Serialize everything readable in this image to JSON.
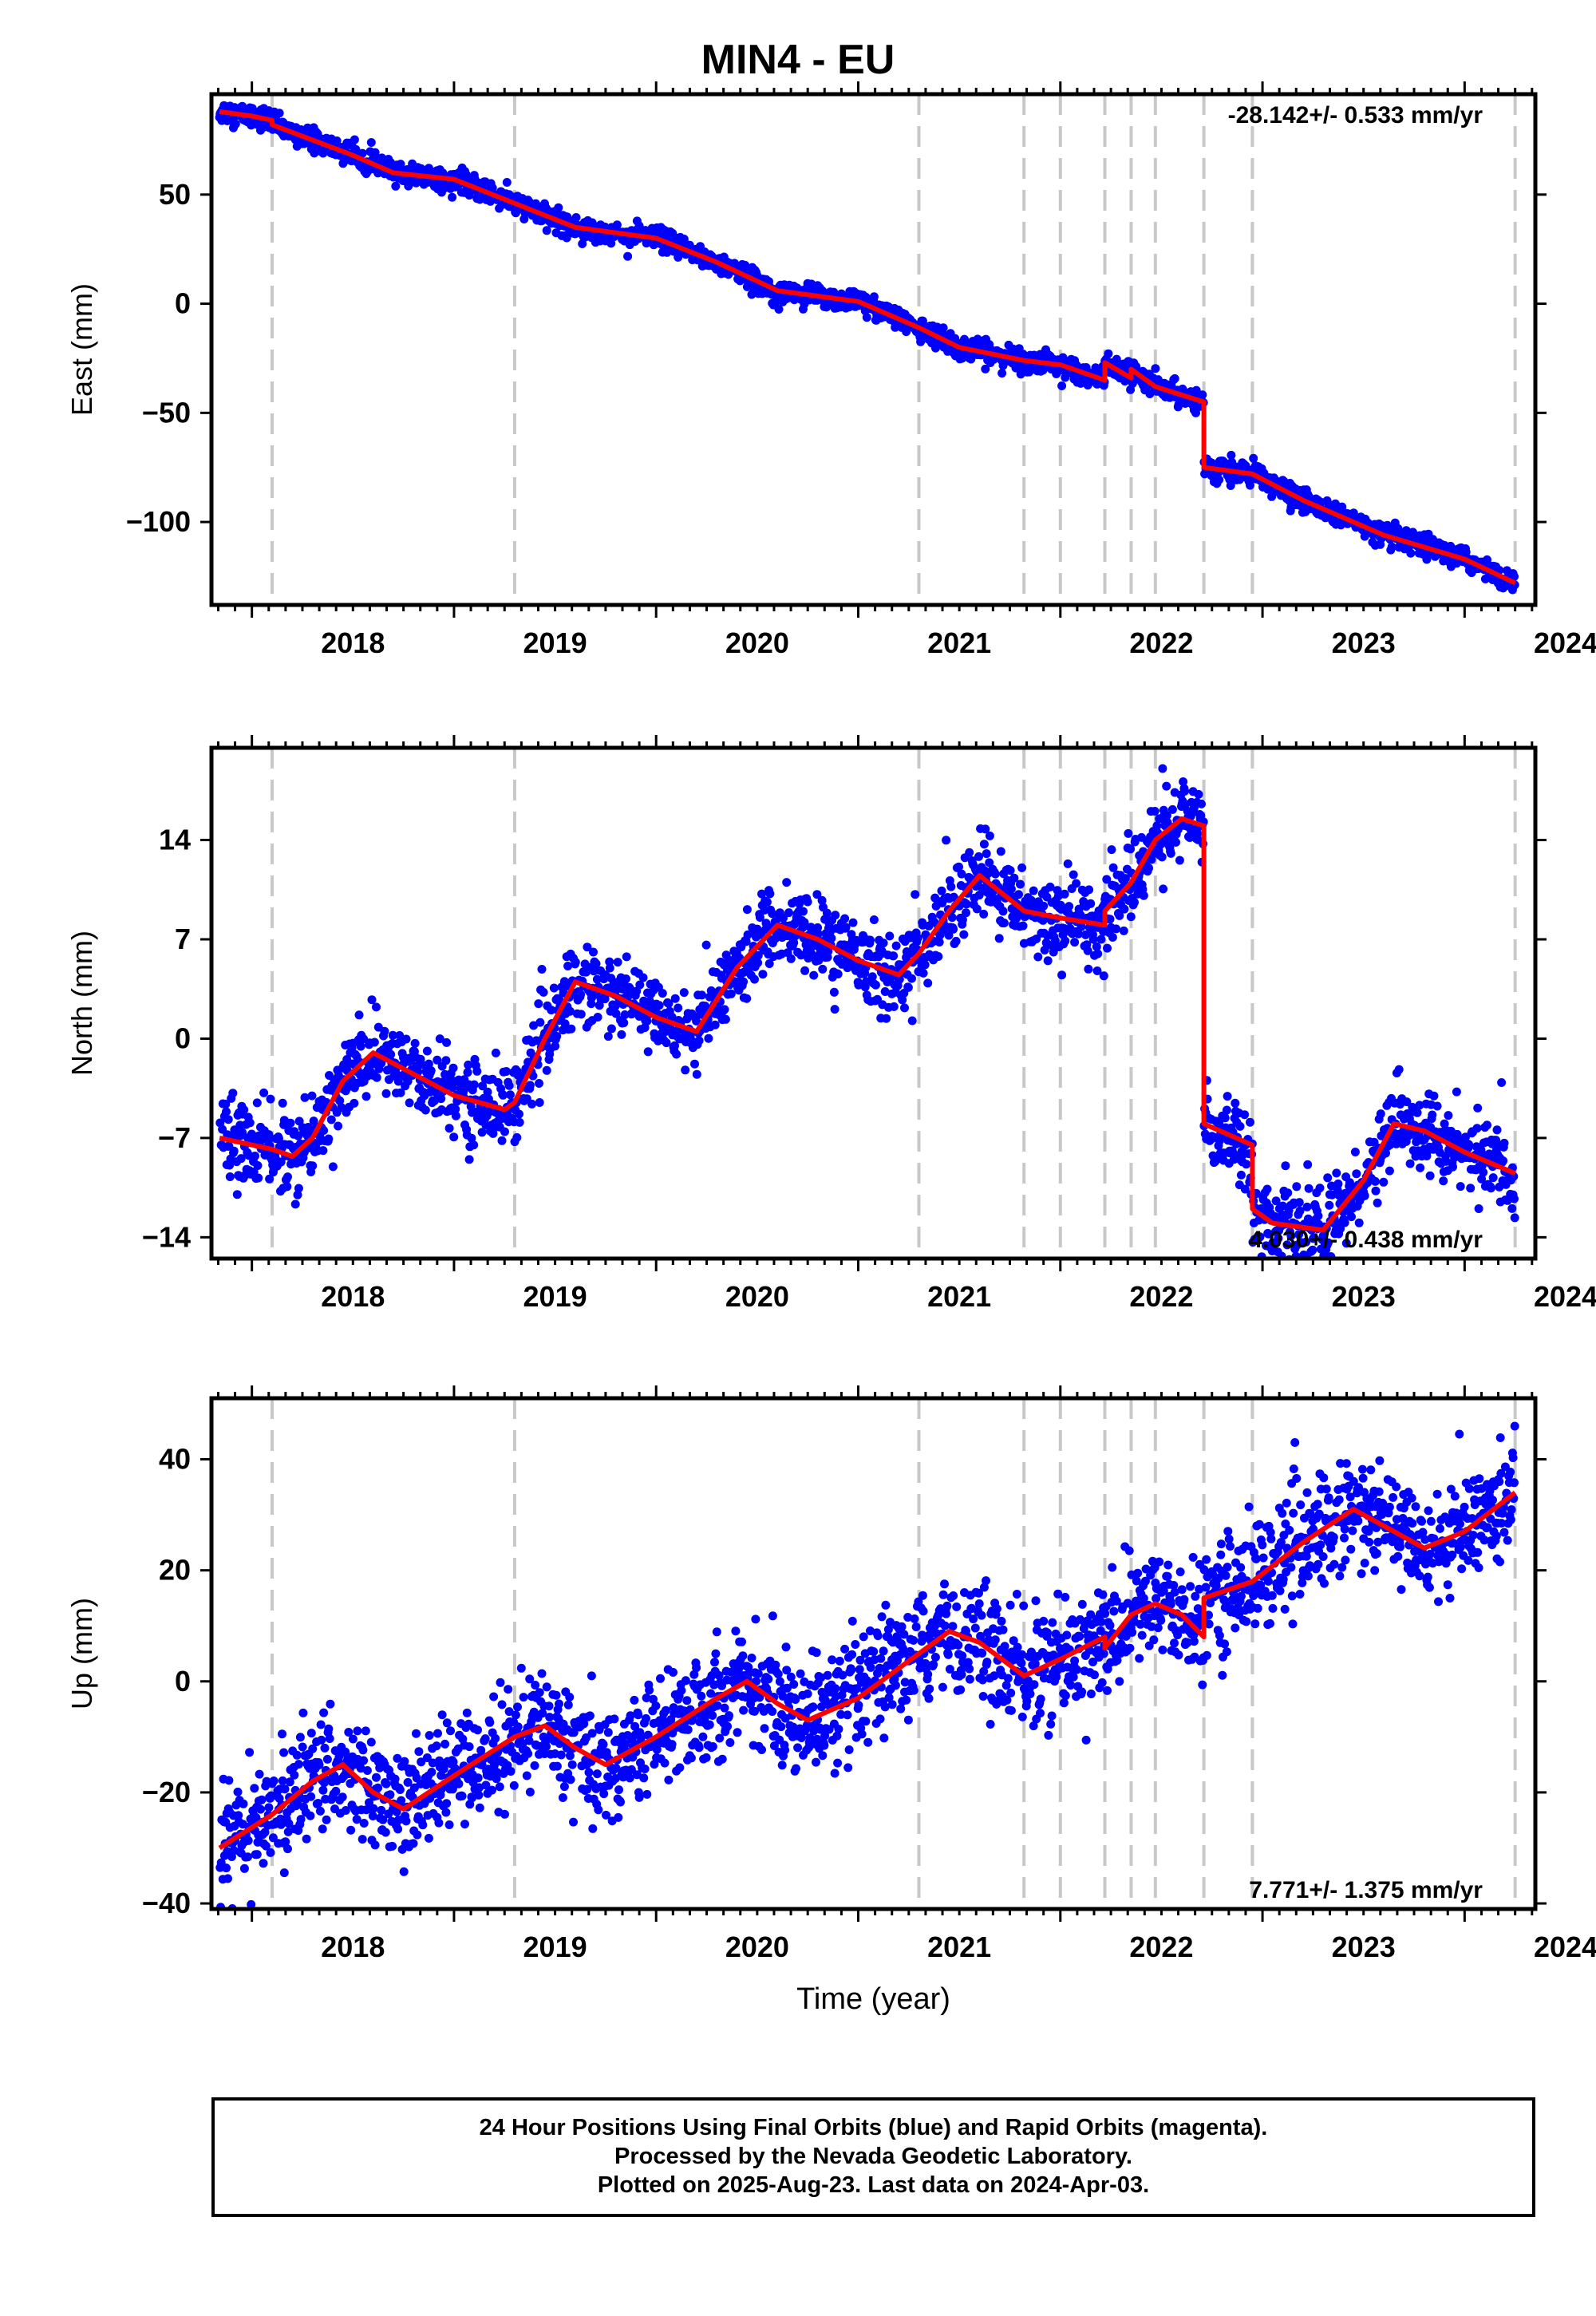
{
  "title": "MIN4 - EU",
  "xlabel": "Time (year)",
  "footer": {
    "line1": "24 Hour Positions Using Final Orbits (blue) and Rapid Orbits (magenta).",
    "line2": "Processed by the Nevada Geodetic Laboratory.",
    "line3": "Plotted on 2025-Aug-23. Last data on 2024-Apr-03."
  },
  "colors": {
    "data": "#0000ff",
    "model": "#ff0000",
    "event_lines": "#c8c8c8",
    "frame": "#000000"
  },
  "chart_data": [
    {
      "type": "scatter",
      "component": "East",
      "ylabel": "East (mm)",
      "rate_label": "-28.142+/- 0.533 mm/yr",
      "rate_label_position": "top-right",
      "xlim": [
        2017.8,
        2024.35
      ],
      "ylim": [
        -138,
        96
      ],
      "yticks": [
        50,
        0,
        -50,
        -100
      ],
      "xticks": [
        2018,
        2019,
        2020,
        2021,
        2022,
        2023,
        2024
      ],
      "event_lines": [
        2018.1,
        2019.3,
        2021.3,
        2021.82,
        2022.0,
        2022.22,
        2022.35,
        2022.47,
        2022.71,
        2022.95,
        2024.25
      ],
      "model_series": {
        "name": "",
        "x": [
          2017.84,
          2018.0,
          2018.1,
          2018.1,
          2018.5,
          2018.7,
          2019.0,
          2019.3,
          2019.6,
          2020.0,
          2020.3,
          2020.6,
          2021.0,
          2021.3,
          2021.5,
          2021.82,
          2022.0,
          2022.22,
          2022.22,
          2022.35,
          2022.35,
          2022.47,
          2022.71,
          2022.71,
          2022.95,
          2023.2,
          2023.6,
          2024.0,
          2024.25
        ],
        "y": [
          88,
          86,
          84,
          82,
          68,
          60,
          57,
          46,
          35,
          30,
          19,
          6,
          1,
          -11,
          -20,
          -26,
          -28,
          -35,
          -27,
          -34,
          -30,
          -38,
          -45,
          -75,
          -78,
          -90,
          -106,
          -117,
          -128
        ]
      },
      "point_scatter_mm": 2.5
    },
    {
      "type": "scatter",
      "component": "North",
      "ylabel": "North (mm)",
      "rate_label": "4.030+/- 0.438 mm/yr",
      "rate_label_position": "bottom-right",
      "xlim": [
        2017.8,
        2024.35
      ],
      "ylim": [
        -15.5,
        20.5
      ],
      "yticks": [
        14,
        7,
        0,
        -7,
        -14
      ],
      "xticks": [
        2018,
        2019,
        2020,
        2021,
        2022,
        2023,
        2024
      ],
      "event_lines": [
        2018.1,
        2019.3,
        2021.3,
        2021.82,
        2022.0,
        2022.22,
        2022.35,
        2022.47,
        2022.71,
        2022.95,
        2024.25
      ],
      "model_series": {
        "name": "",
        "x": [
          2017.84,
          2018.1,
          2018.2,
          2018.3,
          2018.45,
          2018.6,
          2018.8,
          2019.0,
          2019.25,
          2019.3,
          2019.45,
          2019.6,
          2019.8,
          2020.0,
          2020.2,
          2020.4,
          2020.6,
          2020.8,
          2021.0,
          2021.2,
          2021.3,
          2021.45,
          2021.6,
          2021.82,
          2022.0,
          2022.22,
          2022.22,
          2022.35,
          2022.47,
          2022.6,
          2022.71,
          2022.71,
          2022.95,
          2022.95,
          2023.05,
          2023.3,
          2023.5,
          2023.65,
          2023.8,
          2024.0,
          2024.25
        ],
        "y": [
          -7,
          -7.8,
          -8.3,
          -7,
          -3,
          -1,
          -2.5,
          -4,
          -5,
          -4.5,
          0,
          4,
          3,
          1.5,
          0.5,
          5,
          8,
          7,
          5.5,
          4.5,
          6,
          9,
          11.5,
          9,
          8.5,
          8,
          9,
          11,
          14,
          15.5,
          15,
          -6,
          -7.5,
          -12,
          -13,
          -13.5,
          -10,
          -6,
          -6.5,
          -8,
          -9.5
        ]
      },
      "point_scatter_mm": 1.4
    },
    {
      "type": "scatter",
      "component": "Up",
      "ylabel": "Up (mm)",
      "rate_label": "7.771+/- 1.375 mm/yr",
      "rate_label_position": "bottom-right",
      "xlim": [
        2017.8,
        2024.35
      ],
      "ylim": [
        -41,
        51
      ],
      "yticks": [
        40,
        20,
        0,
        -20,
        -40
      ],
      "xticks": [
        2018,
        2019,
        2020,
        2021,
        2022,
        2023,
        2024
      ],
      "event_lines": [
        2018.1,
        2019.3,
        2021.3,
        2021.82,
        2022.0,
        2022.22,
        2022.35,
        2022.47,
        2022.71,
        2022.95,
        2024.25
      ],
      "model_series": {
        "name": "",
        "x": [
          2017.84,
          2018.1,
          2018.3,
          2018.45,
          2018.6,
          2018.75,
          2019.0,
          2019.3,
          2019.45,
          2019.6,
          2019.75,
          2020.0,
          2020.3,
          2020.45,
          2020.6,
          2020.75,
          2021.0,
          2021.3,
          2021.45,
          2021.6,
          2021.82,
          2022.0,
          2022.22,
          2022.22,
          2022.35,
          2022.47,
          2022.6,
          2022.71,
          2022.71,
          2022.95,
          2023.2,
          2023.45,
          2023.6,
          2023.8,
          2024.0,
          2024.25
        ],
        "y": [
          -30,
          -24,
          -18,
          -15,
          -20,
          -23,
          -17,
          -10,
          -8,
          -12,
          -15,
          -10,
          -3,
          0,
          -4,
          -7,
          -3,
          5,
          9,
          7,
          1,
          4,
          8,
          6,
          12,
          14,
          12,
          8,
          15,
          18,
          25,
          31,
          28,
          24,
          27,
          34
        ]
      },
      "point_scatter_mm": 5
    }
  ]
}
